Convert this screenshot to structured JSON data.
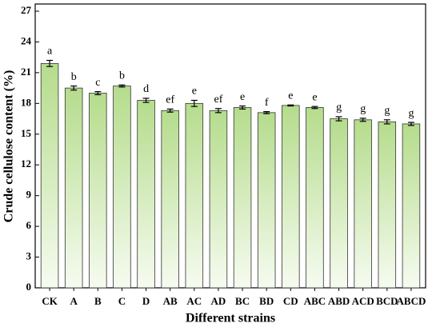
{
  "chart_data": {
    "type": "bar",
    "x_label": "Different strains",
    "y_label": "Crude cellulose content (%)",
    "categories": [
      "CK",
      "A",
      "B",
      "C",
      "D",
      "AB",
      "AC",
      "AD",
      "BC",
      "BD",
      "CD",
      "ABC",
      "ABD",
      "ACD",
      "BCD",
      "ABCD"
    ],
    "values": [
      21.9,
      19.5,
      19.0,
      19.7,
      18.3,
      17.3,
      18.0,
      17.3,
      17.6,
      17.1,
      17.8,
      17.6,
      16.5,
      16.4,
      16.2,
      16.0
    ],
    "errors": [
      0.3,
      0.2,
      0.15,
      0.1,
      0.2,
      0.15,
      0.3,
      0.2,
      0.15,
      0.1,
      0.05,
      0.1,
      0.2,
      0.15,
      0.2,
      0.15
    ],
    "annotations": [
      "a",
      "b",
      "c",
      "b",
      "d",
      "ef",
      "e",
      "ef",
      "e",
      "f",
      "e",
      "e",
      "g",
      "g",
      "g",
      "g"
    ],
    "color": "#b5dc8c",
    "ylim": [
      0,
      27
    ],
    "yticks": [
      0,
      3,
      6,
      9,
      12,
      15,
      18,
      21,
      24,
      27
    ]
  }
}
